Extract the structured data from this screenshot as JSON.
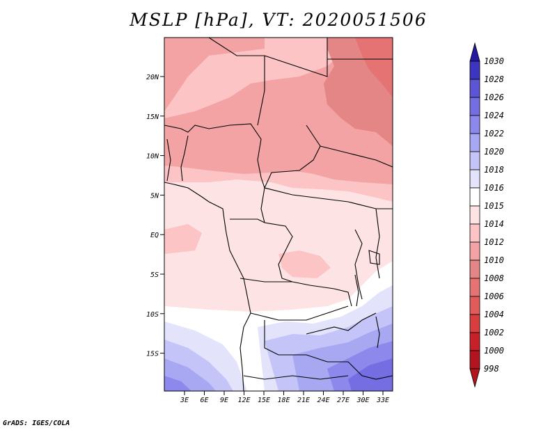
{
  "title": "MSLP [hPa], VT: 2020051506",
  "footer": "GrADS: IGES/COLA",
  "colors": {
    "hpa_998": "#b3151e",
    "hpa_1000": "#c82028",
    "hpa_1002": "#d93d3d",
    "hpa_1004": "#e25b5b",
    "hpa_1006": "#e57373",
    "hpa_1008": "#e58686",
    "hpa_1010": "#f3a3a3",
    "hpa_1012": "#fcc4c4",
    "hpa_1014": "#fde3e3",
    "hpa_1015": "#ffffff",
    "hpa_1016": "#e3e3fc",
    "hpa_1018": "#c4c4f8",
    "hpa_1020": "#a7a7f2",
    "hpa_1022": "#8c88ec",
    "hpa_1024": "#756ee3",
    "hpa_1026": "#5c55d6",
    "hpa_1028": "#3d34c0",
    "hpa_1030": "#2419a0"
  },
  "map": {
    "lon_ticks": [
      "3E",
      "6E",
      "9E",
      "12E",
      "15E",
      "18E",
      "21E",
      "24E",
      "27E",
      "30E",
      "33E"
    ],
    "lat_ticks": [
      "20N",
      "15N",
      "10N",
      "5N",
      "EQ",
      "5S",
      "10S",
      "15S"
    ]
  },
  "colorbar": {
    "labels": [
      "1030",
      "1028",
      "1026",
      "1024",
      "1022",
      "1020",
      "1018",
      "1016",
      "1015",
      "1014",
      "1012",
      "1010",
      "1008",
      "1006",
      "1004",
      "1002",
      "1000",
      "998"
    ]
  }
}
